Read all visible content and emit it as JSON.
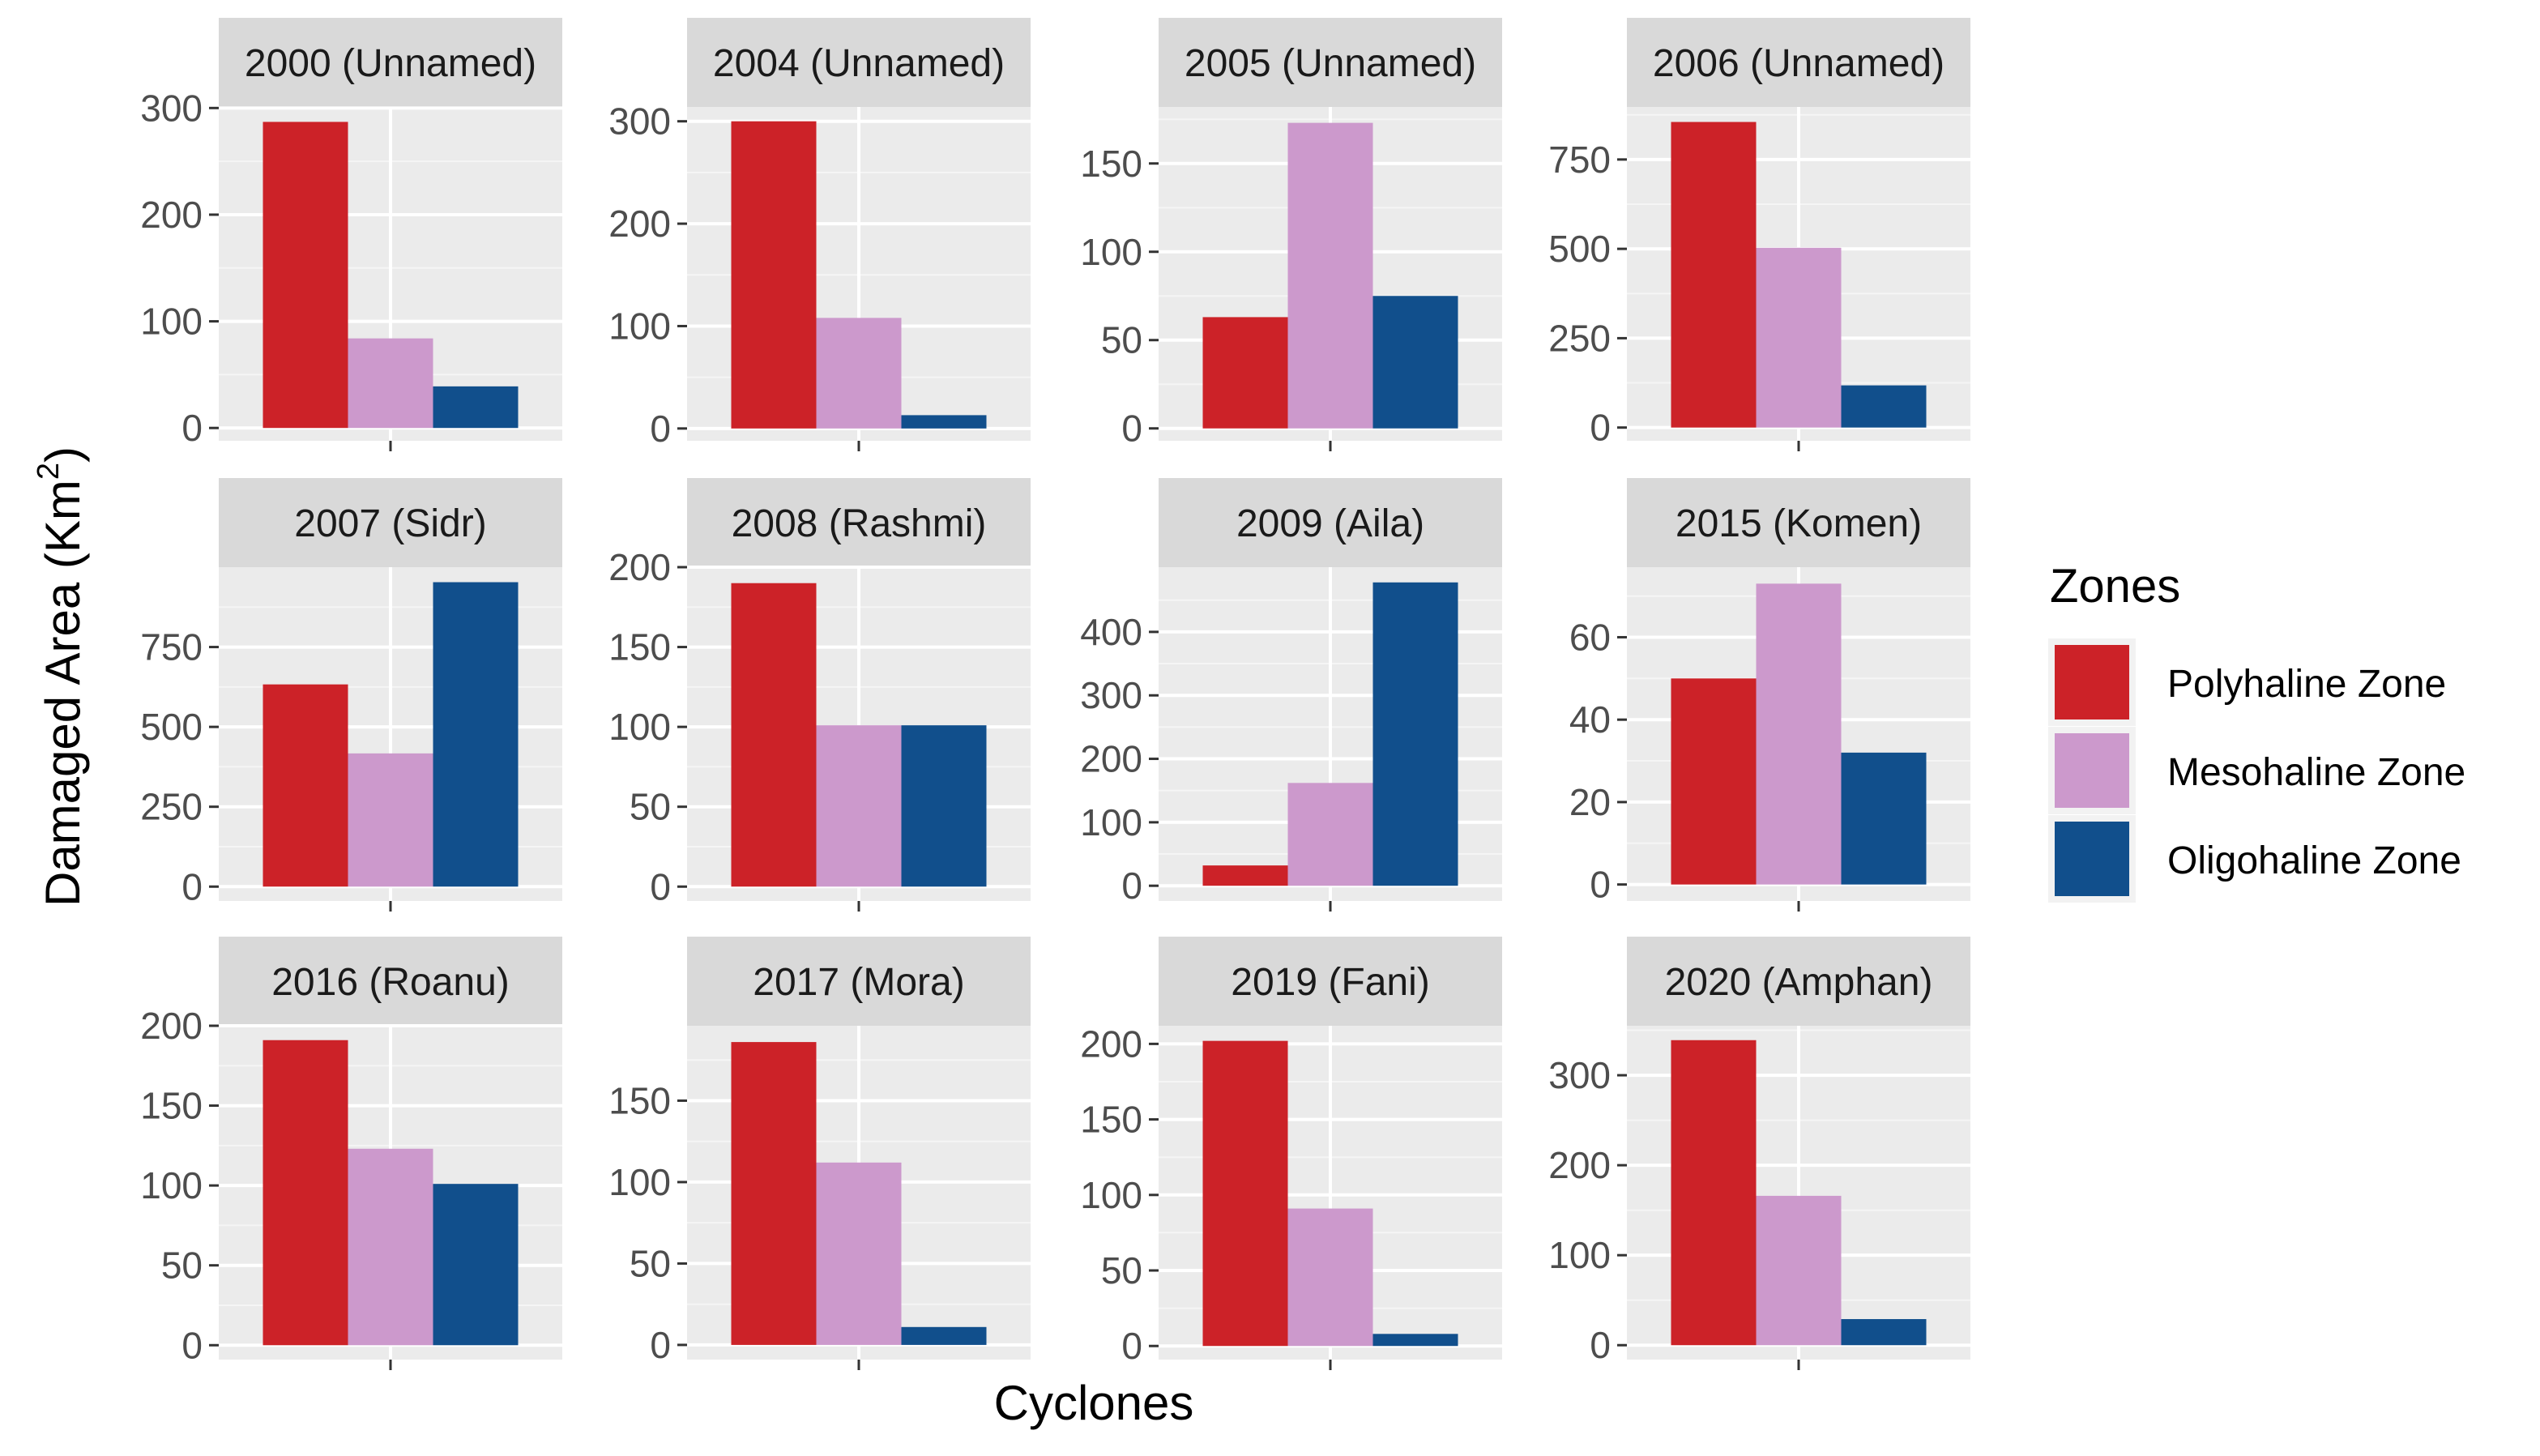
{
  "chart_data": {
    "type": "bar",
    "layout": "facet-grid",
    "xlabel": "Cyclones",
    "ylabel": "Damaged Area",
    "ylabel_unit": "Km",
    "ylabel_sup": "2",
    "grid": true,
    "legend": {
      "title": "Zones",
      "position": "right",
      "entries": [
        {
          "name": "Polyhaline Zone",
          "color": "#cc2228"
        },
        {
          "name": "Mesohaline Zone",
          "color": "#cc99cc"
        },
        {
          "name": "Oligohaline Zone",
          "color": "#114f8c"
        }
      ]
    },
    "colors": {
      "panel_bg": "#ebebeb",
      "strip_bg": "#d9d9d9",
      "grid_major": "#ffffff",
      "grid_minor": "#f5f5f5",
      "tick": "#333333"
    },
    "panels": [
      {
        "title": "2000 (Unnamed)",
        "values": [
          287,
          84,
          39
        ],
        "ylim": [
          -12,
          301
        ],
        "ticks": [
          0,
          100,
          200,
          300
        ]
      },
      {
        "title": "2004 (Unnamed)",
        "values": [
          300,
          108,
          13
        ],
        "ylim": [
          -12,
          314
        ],
        "ticks": [
          0,
          100,
          200,
          300
        ]
      },
      {
        "title": "2005 (Unnamed)",
        "values": [
          63,
          173,
          75
        ],
        "ylim": [
          -7,
          182
        ],
        "ticks": [
          0,
          50,
          100,
          150
        ]
      },
      {
        "title": "2006 (Unnamed)",
        "values": [
          855,
          503,
          118
        ],
        "ylim": [
          -37,
          897
        ],
        "ticks": [
          0,
          250,
          500,
          750
        ]
      },
      {
        "title": "2007 (Sidr)",
        "values": [
          633,
          417,
          953
        ],
        "ylim": [
          -45,
          1000
        ],
        "ticks": [
          0,
          250,
          500,
          750
        ]
      },
      {
        "title": "2008 (Rashmi)",
        "values": [
          190,
          101,
          101
        ],
        "ylim": [
          -9,
          200
        ],
        "ticks": [
          0,
          50,
          100,
          150,
          200
        ]
      },
      {
        "title": "2009 (Aila)",
        "values": [
          32,
          162,
          478
        ],
        "ylim": [
          -24,
          502
        ],
        "ticks": [
          0,
          100,
          200,
          300,
          400
        ]
      },
      {
        "title": "2015 (Komen)",
        "values": [
          50,
          73,
          32
        ],
        "ylim": [
          -4,
          77
        ],
        "ticks": [
          0,
          20,
          40,
          60
        ]
      },
      {
        "title": "2016 (Roanu)",
        "values": [
          191,
          123,
          101
        ],
        "ylim": [
          -9,
          200
        ],
        "ticks": [
          0,
          50,
          100,
          150,
          200
        ]
      },
      {
        "title": "2017 (Mora)",
        "values": [
          186,
          112,
          11
        ],
        "ylim": [
          -9,
          196
        ],
        "ticks": [
          0,
          50,
          100,
          150
        ]
      },
      {
        "title": "2019  (Fani)",
        "values": [
          202,
          91,
          8
        ],
        "ylim": [
          -9,
          212
        ],
        "ticks": [
          0,
          50,
          100,
          150,
          200
        ]
      },
      {
        "title": "2020 (Amphan)",
        "values": [
          339,
          166,
          29
        ],
        "ylim": [
          -16,
          355
        ],
        "ticks": [
          0,
          100,
          200,
          300
        ]
      }
    ]
  }
}
